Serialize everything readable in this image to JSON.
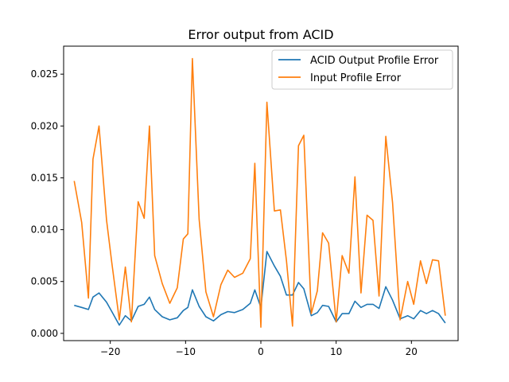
{
  "chart_data": {
    "type": "line",
    "title": "Error output from ACID",
    "xlabel": "",
    "ylabel": "",
    "xlim": [
      -26.2,
      26.2
    ],
    "ylim": [
      -0.0007,
      0.0277
    ],
    "x_ticks": [
      -20,
      -10,
      0,
      10,
      20
    ],
    "x_tick_labels": [
      "−20",
      "−10",
      "0",
      "10",
      "20"
    ],
    "y_ticks": [
      0.0,
      0.005,
      0.01,
      0.015,
      0.02,
      0.025
    ],
    "y_tick_labels": [
      "0.000",
      "0.005",
      "0.010",
      "0.015",
      "0.020",
      "0.025"
    ],
    "grid": false,
    "legend_position": "top-right",
    "x": [
      -24.8,
      -23.8,
      -22.9,
      -22.3,
      -21.5,
      -20.5,
      -19.8,
      -18.8,
      -18.0,
      -17.2,
      -16.3,
      -15.5,
      -14.8,
      -14.1,
      -13.1,
      -12.1,
      -11.1,
      -10.3,
      -9.7,
      -9.1,
      -8.2,
      -7.3,
      -6.3,
      -5.3,
      -4.4,
      -3.5,
      -2.4,
      -1.4,
      -0.8,
      0.0,
      0.8,
      1.8,
      2.6,
      3.4,
      4.2,
      5.0,
      5.7,
      6.7,
      7.5,
      8.2,
      9.0,
      10.0,
      10.8,
      11.7,
      12.5,
      13.3,
      14.1,
      14.9,
      15.7,
      16.6,
      17.5,
      18.5,
      19.5,
      20.3,
      21.2,
      22.0,
      22.8,
      23.6,
      24.5
    ],
    "series": [
      {
        "name": "ACID Output Profile Error",
        "color": "#1f77b4",
        "values": [
          0.0027,
          0.0025,
          0.0023,
          0.0035,
          0.0039,
          0.003,
          0.0021,
          0.0008,
          0.0017,
          0.0012,
          0.0026,
          0.0028,
          0.0035,
          0.0023,
          0.0016,
          0.0013,
          0.0015,
          0.0022,
          0.0025,
          0.0042,
          0.0026,
          0.0016,
          0.0012,
          0.0018,
          0.0021,
          0.002,
          0.0023,
          0.0029,
          0.0042,
          0.0025,
          0.0079,
          0.0065,
          0.0055,
          0.0037,
          0.0037,
          0.0049,
          0.0043,
          0.0017,
          0.002,
          0.0027,
          0.0026,
          0.0011,
          0.0019,
          0.0019,
          0.0031,
          0.0025,
          0.0028,
          0.0028,
          0.0024,
          0.0045,
          0.0032,
          0.0014,
          0.0017,
          0.0014,
          0.0022,
          0.0019,
          0.0022,
          0.0019,
          0.001
        ]
      },
      {
        "name": "Input Profile Error",
        "color": "#ff7f0e",
        "values": [
          0.0147,
          0.0107,
          0.0034,
          0.0168,
          0.02,
          0.0109,
          0.0068,
          0.0013,
          0.0064,
          0.0011,
          0.0127,
          0.0111,
          0.02,
          0.0075,
          0.0048,
          0.0029,
          0.0044,
          0.0091,
          0.0096,
          0.0265,
          0.011,
          0.004,
          0.0016,
          0.0047,
          0.0061,
          0.0054,
          0.0058,
          0.0072,
          0.0164,
          0.0006,
          0.0223,
          0.0118,
          0.0119,
          0.007,
          0.0007,
          0.0181,
          0.0191,
          0.0019,
          0.0041,
          0.0097,
          0.0087,
          0.0011,
          0.0075,
          0.0058,
          0.0151,
          0.0039,
          0.0114,
          0.0109,
          0.0036,
          0.019,
          0.0126,
          0.0013,
          0.005,
          0.0028,
          0.007,
          0.0048,
          0.0071,
          0.007,
          0.0017
        ]
      }
    ]
  }
}
